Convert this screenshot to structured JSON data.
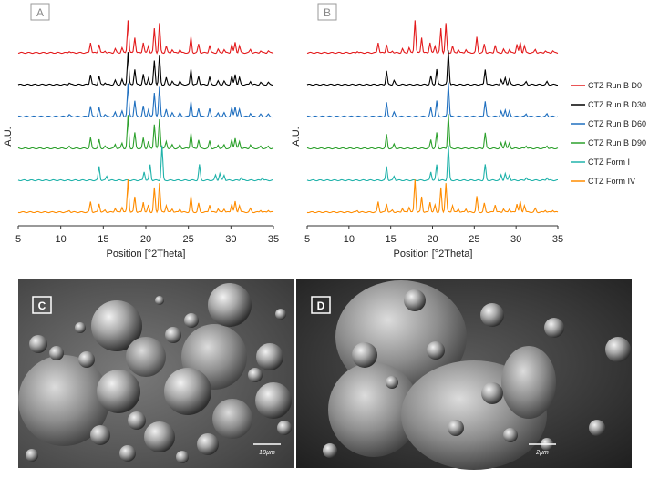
{
  "chart_data": [
    {
      "type": "line",
      "panel_label": "A",
      "xlabel": "Position [°2Theta]",
      "ylabel": "A.U.",
      "xlim": [
        5,
        35
      ],
      "x_ticks": [
        "5",
        "10",
        "15",
        "20",
        "25",
        "30",
        "35"
      ],
      "grid": false,
      "stacked_offsets": true,
      "series": [
        {
          "name": "CTZ Run B D0",
          "color": "#e31a1c",
          "peaks": [
            [
              11.0,
              0.05
            ],
            [
              13.5,
              0.3
            ],
            [
              14.5,
              0.25
            ],
            [
              15.2,
              0.06
            ],
            [
              16.4,
              0.12
            ],
            [
              17.2,
              0.15
            ],
            [
              17.9,
              0.95
            ],
            [
              18.7,
              0.45
            ],
            [
              19.7,
              0.3
            ],
            [
              20.3,
              0.2
            ],
            [
              21.0,
              0.7
            ],
            [
              21.6,
              0.85
            ],
            [
              22.4,
              0.2
            ],
            [
              23.1,
              0.1
            ],
            [
              24.0,
              0.1
            ],
            [
              25.3,
              0.45
            ],
            [
              26.2,
              0.25
            ],
            [
              27.5,
              0.22
            ],
            [
              28.5,
              0.1
            ],
            [
              29.2,
              0.1
            ],
            [
              30.1,
              0.25
            ],
            [
              30.5,
              0.3
            ],
            [
              31.0,
              0.2
            ],
            [
              32.3,
              0.1
            ],
            [
              33.5,
              0.06
            ],
            [
              34.4,
              0.06
            ]
          ]
        },
        {
          "name": "CTZ Run B D30",
          "color": "#000000",
          "peaks": [
            [
              11.0,
              0.05
            ],
            [
              13.5,
              0.3
            ],
            [
              14.5,
              0.25
            ],
            [
              15.2,
              0.06
            ],
            [
              16.4,
              0.12
            ],
            [
              17.2,
              0.15
            ],
            [
              17.9,
              0.95
            ],
            [
              18.7,
              0.45
            ],
            [
              19.7,
              0.3
            ],
            [
              20.3,
              0.2
            ],
            [
              21.0,
              0.7
            ],
            [
              21.6,
              0.85
            ],
            [
              22.4,
              0.2
            ],
            [
              23.1,
              0.1
            ],
            [
              24.0,
              0.1
            ],
            [
              25.3,
              0.45
            ],
            [
              26.2,
              0.25
            ],
            [
              27.5,
              0.22
            ],
            [
              28.5,
              0.1
            ],
            [
              29.2,
              0.1
            ],
            [
              30.1,
              0.25
            ],
            [
              30.5,
              0.3
            ],
            [
              31.0,
              0.2
            ],
            [
              32.3,
              0.1
            ],
            [
              33.5,
              0.06
            ],
            [
              34.4,
              0.06
            ]
          ]
        },
        {
          "name": "CTZ Run B D60",
          "color": "#1f6fbf",
          "peaks": [
            [
              11.0,
              0.05
            ],
            [
              13.5,
              0.3
            ],
            [
              14.5,
              0.25
            ],
            [
              15.2,
              0.06
            ],
            [
              16.4,
              0.12
            ],
            [
              17.2,
              0.15
            ],
            [
              17.9,
              0.95
            ],
            [
              18.7,
              0.45
            ],
            [
              19.7,
              0.3
            ],
            [
              20.3,
              0.2
            ],
            [
              21.0,
              0.7
            ],
            [
              21.6,
              0.85
            ],
            [
              22.4,
              0.2
            ],
            [
              23.1,
              0.1
            ],
            [
              24.0,
              0.1
            ],
            [
              25.3,
              0.45
            ],
            [
              26.2,
              0.25
            ],
            [
              27.5,
              0.22
            ],
            [
              28.5,
              0.1
            ],
            [
              29.2,
              0.1
            ],
            [
              30.1,
              0.25
            ],
            [
              30.5,
              0.3
            ],
            [
              31.0,
              0.2
            ],
            [
              32.3,
              0.1
            ],
            [
              33.5,
              0.06
            ],
            [
              34.4,
              0.06
            ]
          ]
        },
        {
          "name": "CTZ Run B D90",
          "color": "#2ca02c",
          "peaks": [
            [
              11.0,
              0.05
            ],
            [
              13.5,
              0.3
            ],
            [
              14.5,
              0.25
            ],
            [
              15.2,
              0.06
            ],
            [
              16.4,
              0.12
            ],
            [
              17.2,
              0.15
            ],
            [
              17.9,
              0.95
            ],
            [
              18.7,
              0.45
            ],
            [
              19.7,
              0.3
            ],
            [
              20.3,
              0.2
            ],
            [
              21.0,
              0.7
            ],
            [
              21.6,
              0.85
            ],
            [
              22.4,
              0.2
            ],
            [
              23.1,
              0.1
            ],
            [
              24.0,
              0.1
            ],
            [
              25.3,
              0.45
            ],
            [
              26.2,
              0.25
            ],
            [
              27.5,
              0.22
            ],
            [
              28.5,
              0.1
            ],
            [
              29.2,
              0.1
            ],
            [
              30.1,
              0.25
            ],
            [
              30.5,
              0.3
            ],
            [
              31.0,
              0.2
            ],
            [
              32.3,
              0.1
            ],
            [
              33.5,
              0.06
            ],
            [
              34.4,
              0.06
            ]
          ]
        },
        {
          "name": "CTZ Form I",
          "color": "#20b2aa",
          "peaks": [
            [
              14.5,
              0.4
            ],
            [
              15.4,
              0.12
            ],
            [
              19.8,
              0.25
            ],
            [
              20.5,
              0.45
            ],
            [
              21.9,
              1.0
            ],
            [
              26.3,
              0.45
            ],
            [
              28.2,
              0.15
            ],
            [
              28.7,
              0.2
            ],
            [
              29.2,
              0.15
            ],
            [
              31.2,
              0.08
            ],
            [
              33.7,
              0.08
            ]
          ]
        },
        {
          "name": "CTZ Form IV",
          "color": "#ff8c00",
          "peaks": [
            [
              11.0,
              0.05
            ],
            [
              13.5,
              0.3
            ],
            [
              14.5,
              0.25
            ],
            [
              15.2,
              0.06
            ],
            [
              16.4,
              0.12
            ],
            [
              17.2,
              0.15
            ],
            [
              17.9,
              0.95
            ],
            [
              18.7,
              0.45
            ],
            [
              19.7,
              0.3
            ],
            [
              20.3,
              0.2
            ],
            [
              21.0,
              0.7
            ],
            [
              21.6,
              0.85
            ],
            [
              22.4,
              0.2
            ],
            [
              23.1,
              0.1
            ],
            [
              24.0,
              0.1
            ],
            [
              25.3,
              0.45
            ],
            [
              26.2,
              0.25
            ],
            [
              27.5,
              0.22
            ],
            [
              28.5,
              0.1
            ],
            [
              29.2,
              0.1
            ],
            [
              30.1,
              0.25
            ],
            [
              30.5,
              0.3
            ],
            [
              31.0,
              0.2
            ],
            [
              32.3,
              0.1
            ],
            [
              33.5,
              0.06
            ],
            [
              34.4,
              0.06
            ]
          ]
        }
      ]
    },
    {
      "type": "line",
      "panel_label": "B",
      "xlabel": "Position [°2Theta]",
      "ylabel": "A.U.",
      "xlim": [
        5,
        35
      ],
      "x_ticks": [
        "5",
        "10",
        "15",
        "20",
        "25",
        "30",
        "35"
      ],
      "grid": false,
      "stacked_offsets": true,
      "legend_position": "right",
      "series": [
        {
          "name": "CTZ Run B D0",
          "color": "#e31a1c",
          "peaks": [
            [
              11.0,
              0.05
            ],
            [
              13.5,
              0.3
            ],
            [
              14.5,
              0.25
            ],
            [
              15.2,
              0.06
            ],
            [
              16.4,
              0.12
            ],
            [
              17.2,
              0.15
            ],
            [
              17.9,
              0.95
            ],
            [
              18.7,
              0.45
            ],
            [
              19.7,
              0.3
            ],
            [
              20.3,
              0.2
            ],
            [
              21.0,
              0.7
            ],
            [
              21.6,
              0.85
            ],
            [
              22.4,
              0.2
            ],
            [
              23.1,
              0.1
            ],
            [
              24.0,
              0.1
            ],
            [
              25.3,
              0.45
            ],
            [
              26.2,
              0.25
            ],
            [
              27.5,
              0.22
            ],
            [
              28.5,
              0.1
            ],
            [
              29.2,
              0.1
            ],
            [
              30.1,
              0.25
            ],
            [
              30.5,
              0.3
            ],
            [
              31.0,
              0.2
            ],
            [
              32.3,
              0.1
            ],
            [
              33.5,
              0.06
            ],
            [
              34.4,
              0.06
            ]
          ]
        },
        {
          "name": "CTZ Run B D30",
          "color": "#000000",
          "peaks": [
            [
              14.5,
              0.4
            ],
            [
              15.4,
              0.12
            ],
            [
              19.8,
              0.25
            ],
            [
              20.5,
              0.45
            ],
            [
              21.9,
              1.0
            ],
            [
              26.3,
              0.45
            ],
            [
              28.2,
              0.15
            ],
            [
              28.7,
              0.2
            ],
            [
              29.2,
              0.15
            ],
            [
              31.2,
              0.08
            ],
            [
              33.7,
              0.08
            ]
          ]
        },
        {
          "name": "CTZ Run B D60",
          "color": "#1f6fbf",
          "peaks": [
            [
              14.5,
              0.4
            ],
            [
              15.4,
              0.12
            ],
            [
              19.8,
              0.25
            ],
            [
              20.5,
              0.45
            ],
            [
              21.9,
              1.0
            ],
            [
              26.3,
              0.45
            ],
            [
              28.2,
              0.15
            ],
            [
              28.7,
              0.2
            ],
            [
              29.2,
              0.15
            ],
            [
              31.2,
              0.08
            ],
            [
              33.7,
              0.08
            ]
          ]
        },
        {
          "name": "CTZ Run B D90",
          "color": "#2ca02c",
          "peaks": [
            [
              14.5,
              0.4
            ],
            [
              15.4,
              0.12
            ],
            [
              19.8,
              0.25
            ],
            [
              20.5,
              0.45
            ],
            [
              21.9,
              1.0
            ],
            [
              26.3,
              0.45
            ],
            [
              28.2,
              0.15
            ],
            [
              28.7,
              0.2
            ],
            [
              29.2,
              0.15
            ],
            [
              31.2,
              0.08
            ],
            [
              33.7,
              0.08
            ]
          ]
        },
        {
          "name": "CTZ Form I",
          "color": "#20b2aa",
          "peaks": [
            [
              14.5,
              0.4
            ],
            [
              15.4,
              0.12
            ],
            [
              19.8,
              0.25
            ],
            [
              20.5,
              0.45
            ],
            [
              21.9,
              1.0
            ],
            [
              26.3,
              0.45
            ],
            [
              28.2,
              0.15
            ],
            [
              28.7,
              0.2
            ],
            [
              29.2,
              0.15
            ],
            [
              31.2,
              0.08
            ],
            [
              33.7,
              0.08
            ]
          ]
        },
        {
          "name": "CTZ Form IV",
          "color": "#ff8c00",
          "peaks": [
            [
              11.0,
              0.05
            ],
            [
              13.5,
              0.3
            ],
            [
              14.5,
              0.25
            ],
            [
              15.2,
              0.06
            ],
            [
              16.4,
              0.12
            ],
            [
              17.2,
              0.15
            ],
            [
              17.9,
              0.95
            ],
            [
              18.7,
              0.45
            ],
            [
              19.7,
              0.3
            ],
            [
              20.3,
              0.2
            ],
            [
              21.0,
              0.7
            ],
            [
              21.6,
              0.85
            ],
            [
              22.4,
              0.2
            ],
            [
              23.1,
              0.1
            ],
            [
              24.0,
              0.1
            ],
            [
              25.3,
              0.45
            ],
            [
              26.2,
              0.25
            ],
            [
              27.5,
              0.22
            ],
            [
              28.5,
              0.1
            ],
            [
              29.2,
              0.1
            ],
            [
              30.1,
              0.25
            ],
            [
              30.5,
              0.3
            ],
            [
              31.0,
              0.2
            ],
            [
              32.3,
              0.1
            ],
            [
              33.5,
              0.06
            ],
            [
              34.4,
              0.06
            ]
          ]
        }
      ]
    }
  ],
  "micrographs": [
    {
      "panel_label": "C",
      "scale_bar": "10µm"
    },
    {
      "panel_label": "D",
      "scale_bar": "2µm"
    }
  ]
}
